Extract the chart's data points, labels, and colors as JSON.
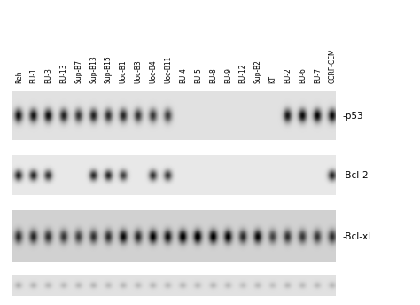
{
  "sample_labels": [
    "Reh",
    "EU-1",
    "EU-3",
    "EU-13",
    "Sup-B7",
    "Sup-B13",
    "Sup-B15",
    "Uoc-B1",
    "Uoc-B3",
    "Uoc-B4",
    "Uoc-B11",
    "EU-4",
    "EU-5",
    "EU-8",
    "EU-9",
    "EU-12",
    "Sup-B2",
    "KT",
    "EU-2",
    "EU-6",
    "EU-7",
    "CCRF-CEM"
  ],
  "n_samples": 22,
  "panel_labels": [
    "-p53",
    "-Bcl-2",
    "-Bcl-xl",
    ""
  ],
  "p53_intensities": [
    0.88,
    0.85,
    0.88,
    0.8,
    0.72,
    0.8,
    0.75,
    0.78,
    0.72,
    0.7,
    0.68,
    0.04,
    0.04,
    0.04,
    0.04,
    0.04,
    0.04,
    0.04,
    0.85,
    0.9,
    0.92,
    0.9
  ],
  "bcl2_intensities": [
    0.82,
    0.8,
    0.75,
    0.04,
    0.04,
    0.8,
    0.82,
    0.7,
    0.04,
    0.75,
    0.72,
    0.04,
    0.04,
    0.04,
    0.04,
    0.04,
    0.04,
    0.04,
    0.04,
    0.04,
    0.04,
    0.8
  ],
  "bclxl_intensities": [
    0.7,
    0.72,
    0.68,
    0.65,
    0.62,
    0.68,
    0.7,
    0.85,
    0.72,
    0.88,
    0.82,
    0.92,
    0.95,
    0.9,
    0.88,
    0.7,
    0.85,
    0.6,
    0.68,
    0.65,
    0.65,
    0.68
  ],
  "bax_intensities": [
    0.2,
    0.18,
    0.17,
    0.16,
    0.17,
    0.18,
    0.16,
    0.17,
    0.16,
    0.17,
    0.16,
    0.17,
    0.16,
    0.17,
    0.16,
    0.14,
    0.16,
    0.14,
    0.17,
    0.16,
    0.16,
    0.17
  ],
  "label_fontsize": 5.5,
  "panel_label_fontsize": 7.5,
  "fig_width": 4.74,
  "fig_height": 3.44,
  "fig_dpi": 100
}
